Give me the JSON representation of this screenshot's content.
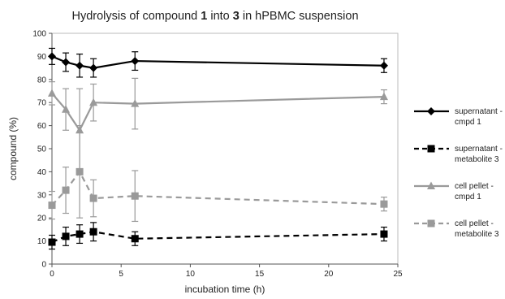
{
  "chart_data": {
    "type": "line",
    "title": {
      "prefix": "Hydrolysis of compound ",
      "bold1": "1",
      "middle": " into ",
      "bold2": "3",
      "suffix": " in hPBMC suspension"
    },
    "xlabel": "incubation time (h)",
    "ylabel": "compound (%)",
    "xlim": [
      0,
      25
    ],
    "ylim": [
      0,
      100
    ],
    "xticks": [
      0,
      5,
      10,
      15,
      20,
      25
    ],
    "yticks": [
      0,
      10,
      20,
      30,
      40,
      50,
      60,
      70,
      80,
      90,
      100
    ],
    "x": [
      0,
      1,
      2,
      3,
      6,
      24
    ],
    "grid": false,
    "legend_position": "right",
    "series": [
      {
        "label_lines": [
          "supernatant -",
          "cmpd 1"
        ],
        "color": "#000000",
        "dash": "solid",
        "marker": "diamond",
        "values": [
          90,
          87.5,
          86,
          85,
          88,
          86
        ],
        "errors": [
          3.5,
          4,
          5,
          4,
          4,
          3
        ]
      },
      {
        "label_lines": [
          "supernatant -",
          "metabolite 3"
        ],
        "color": "#000000",
        "dash": "dashed",
        "marker": "square",
        "values": [
          9.5,
          12,
          13,
          14,
          11,
          13
        ],
        "errors": [
          3,
          4,
          4,
          4,
          3,
          3
        ]
      },
      {
        "label_lines": [
          "cell pellet -",
          "cmpd 1"
        ],
        "color": "#9a9a9a",
        "dash": "solid",
        "marker": "triangle",
        "values": [
          74,
          67,
          58,
          70,
          69.5,
          72.5
        ],
        "errors": [
          5,
          9,
          18,
          8,
          11,
          3
        ]
      },
      {
        "label_lines": [
          "cell pellet -",
          "metabolite 3"
        ],
        "color": "#9a9a9a",
        "dash": "dashed",
        "marker": "square",
        "values": [
          25.5,
          32,
          40,
          28.5,
          29.5,
          26
        ],
        "errors": [
          6,
          10,
          20,
          8,
          11,
          3
        ]
      }
    ]
  }
}
